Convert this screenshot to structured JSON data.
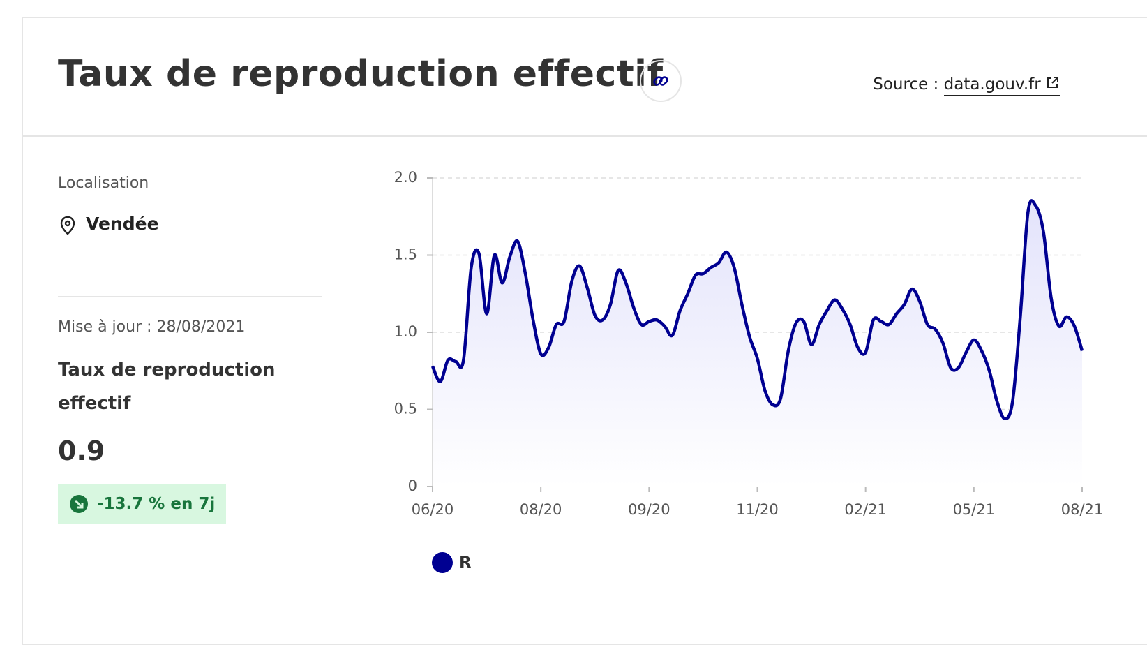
{
  "header": {
    "title": "Taux de reproduction effectif",
    "source_label": "Source :",
    "source_link": "data.gouv.fr"
  },
  "sidebar": {
    "location_label": "Localisation",
    "location": "Vendée",
    "update": "Mise à jour : 28/08/2021",
    "indicator": "Taux de reproduction effectif",
    "value": "0.9",
    "change": "-13.7 % en 7j"
  },
  "chart_data": {
    "type": "line",
    "categories": [
      "06/20",
      null,
      null,
      null,
      null,
      null,
      null,
      null,
      null,
      null,
      null,
      null,
      null,
      null,
      "08/20",
      null,
      null,
      null,
      null,
      null,
      null,
      null,
      null,
      null,
      null,
      null,
      null,
      null,
      "09/20",
      null,
      null,
      null,
      null,
      null,
      null,
      null,
      null,
      null,
      null,
      null,
      null,
      null,
      "11/20",
      null,
      null,
      null,
      null,
      null,
      null,
      null,
      null,
      null,
      null,
      null,
      null,
      null,
      "02/21",
      null,
      null,
      null,
      null,
      null,
      null,
      null,
      null,
      null,
      null,
      null,
      null,
      null,
      "05/21",
      null,
      null,
      null,
      null,
      null,
      null,
      null,
      null,
      null,
      null,
      null,
      null,
      null,
      "08/21"
    ],
    "series": [
      {
        "name": "R",
        "color": "#000091",
        "values": [
          0.78,
          0.68,
          0.82,
          0.81,
          0.82,
          1.42,
          1.51,
          1.12,
          1.5,
          1.32,
          1.49,
          1.59,
          1.38,
          1.08,
          0.86,
          0.9,
          1.05,
          1.07,
          1.33,
          1.43,
          1.29,
          1.11,
          1.08,
          1.18,
          1.4,
          1.32,
          1.16,
          1.05,
          1.07,
          1.08,
          1.04,
          0.98,
          1.14,
          1.25,
          1.37,
          1.38,
          1.42,
          1.45,
          1.52,
          1.42,
          1.18,
          0.97,
          0.83,
          0.62,
          0.53,
          0.57,
          0.88,
          1.06,
          1.07,
          0.92,
          1.05,
          1.14,
          1.21,
          1.15,
          1.05,
          0.9,
          0.87,
          1.08,
          1.07,
          1.05,
          1.12,
          1.18,
          1.28,
          1.2,
          1.05,
          1.02,
          0.93,
          0.77,
          0.77,
          0.87,
          0.95,
          0.88,
          0.75,
          0.55,
          0.44,
          0.55,
          1.1,
          1.78,
          1.82,
          1.65,
          1.22,
          1.04,
          1.1,
          1.04,
          0.88
        ]
      }
    ],
    "ylim": [
      0,
      2
    ],
    "yticks": [
      0,
      0.5,
      {
        "value": 1,
        "label": "1.0"
      },
      1.5,
      {
        "value": 2,
        "label": "2.0"
      }
    ],
    "grid": true,
    "legend": "bottom"
  }
}
